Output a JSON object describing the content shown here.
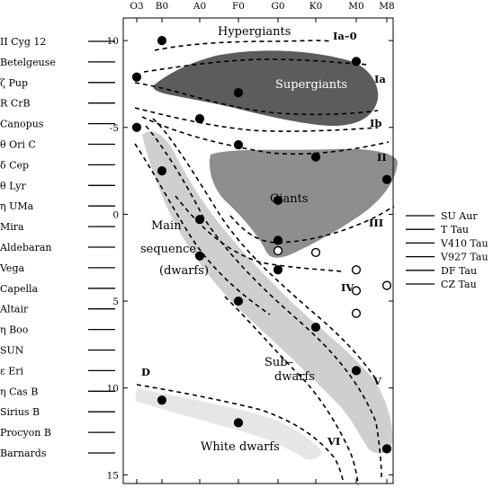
{
  "chart_data": {
    "type": "scatter",
    "title": "",
    "xlabel": "",
    "ylabel": "",
    "x_ticks": [
      "O3",
      "B0",
      "A0",
      "F0",
      "G0",
      "K0",
      "M0",
      "M8"
    ],
    "y_ticks": [
      -10,
      -5,
      0,
      5,
      10,
      15
    ],
    "ylim": [
      15.5,
      -11.3
    ],
    "y_axis_inverted": true,
    "left_labels": [
      "II Cyg 12",
      "Betelgeuse",
      "ζ Pup",
      "R CrB",
      "Canopus",
      "θ  Ori C",
      "δ  Cep",
      "θ  Lyr",
      "η  UMa",
      "Mira",
      "Aldebaran",
      "Vega",
      "Capella",
      "Altair",
      "η  Boo",
      "SUN",
      "ε  Eri",
      "η  Cas B",
      "Sirius B",
      "Procyon B",
      "Barnards"
    ],
    "right_labels": [
      "SU Aur",
      "T Tau",
      "V410 Tau",
      "V927 Tau",
      "DF Tau",
      "CZ Tau"
    ],
    "regions": [
      {
        "name": "Hypergiants",
        "color": "#ffffff"
      },
      {
        "name": "Supergiants",
        "color": "#5c5c5c"
      },
      {
        "name": "Giants",
        "color": "#8e8e8e"
      },
      {
        "name": "Main sequence (dwarfs)",
        "lines": [
          "Main",
          "sequence",
          "(dwarfs)"
        ],
        "color": "#cfcfcf"
      },
      {
        "name": "Sub-dwarfs",
        "lines": [
          "Sub–",
          "dwarfs"
        ]
      },
      {
        "name": "White dwarfs",
        "color": "#e6e6e6"
      }
    ],
    "luminosity_classes": [
      "Ia–0",
      "Ia",
      "Ib",
      "II",
      "III",
      "IV",
      "V",
      "VI",
      "D"
    ],
    "points": [
      {
        "x": "B0",
        "y": -10.0,
        "style": "filled"
      },
      {
        "x": "M0",
        "y": -8.8,
        "style": "filled"
      },
      {
        "x": "O3",
        "y": -7.9,
        "style": "filled"
      },
      {
        "x": "F0",
        "y": -7.0,
        "style": "filled"
      },
      {
        "x": "A0",
        "y": -5.5,
        "style": "filled"
      },
      {
        "x": "O3",
        "y": -5.0,
        "style": "filled"
      },
      {
        "x": "F0",
        "y": -4.0,
        "style": "filled"
      },
      {
        "x": "K0",
        "y": -3.3,
        "style": "filled"
      },
      {
        "x": "M8",
        "y": -2.0,
        "style": "filled"
      },
      {
        "x": "B0",
        "y": -2.5,
        "style": "filled"
      },
      {
        "x": "G0",
        "y": -0.8,
        "style": "filled"
      },
      {
        "x": "A0",
        "y": 0.3,
        "style": "filled"
      },
      {
        "x": "G0",
        "y": 1.5,
        "style": "filled"
      },
      {
        "x": "A0",
        "y": 2.4,
        "style": "filled"
      },
      {
        "x": "G0",
        "y": 3.2,
        "style": "filled"
      },
      {
        "x": "F0",
        "y": 5.0,
        "style": "filled"
      },
      {
        "x": "K0",
        "y": 6.5,
        "style": "filled"
      },
      {
        "x": "M0",
        "y": 9.0,
        "style": "filled"
      },
      {
        "x": "B0",
        "y": 10.7,
        "style": "filled"
      },
      {
        "x": "F0",
        "y": 12.0,
        "style": "filled"
      },
      {
        "x": "M8",
        "y": 13.5,
        "style": "filled"
      },
      {
        "x": "G0",
        "y": 2.1,
        "style": "open"
      },
      {
        "x": "K0",
        "y": 2.2,
        "style": "open"
      },
      {
        "x": "M0",
        "y": 3.2,
        "style": "open"
      },
      {
        "x": "M0",
        "y": 4.4,
        "style": "open"
      },
      {
        "x": "M8",
        "y": 4.1,
        "style": "open"
      },
      {
        "x": "M0",
        "y": 5.7,
        "style": "open"
      }
    ]
  }
}
